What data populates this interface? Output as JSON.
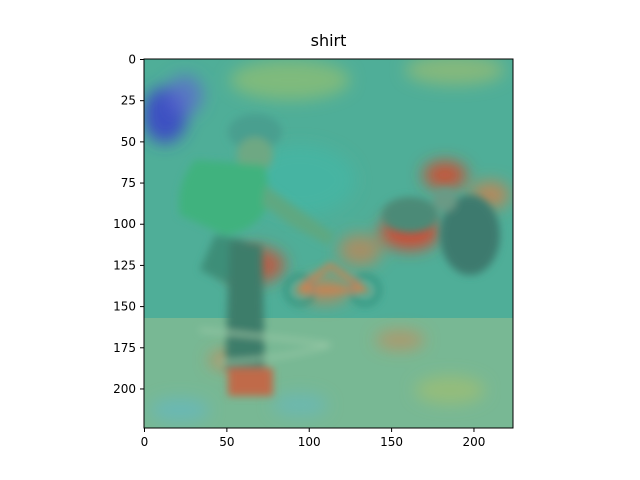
{
  "title": "shirt",
  "x_axis": {
    "min": 0,
    "max": 224,
    "ticks": [
      0,
      50,
      100,
      150,
      200
    ]
  },
  "y_axis": {
    "min": 0,
    "max": 224,
    "inverted": true,
    "ticks": [
      0,
      25,
      50,
      75,
      100,
      125,
      150,
      175,
      200
    ]
  },
  "image": {
    "subject": "rollerblader-overlay",
    "overlay": "saliency-heatmap",
    "colormap": "jet"
  },
  "colors": {
    "base_green": "#6fb48f",
    "teal": "#3fb9a9",
    "hot_red": "#d9442c",
    "warm_orange": "#e07a45",
    "cold_blue": "#3b3fc9",
    "yellow_green": "#a8bf6a"
  }
}
